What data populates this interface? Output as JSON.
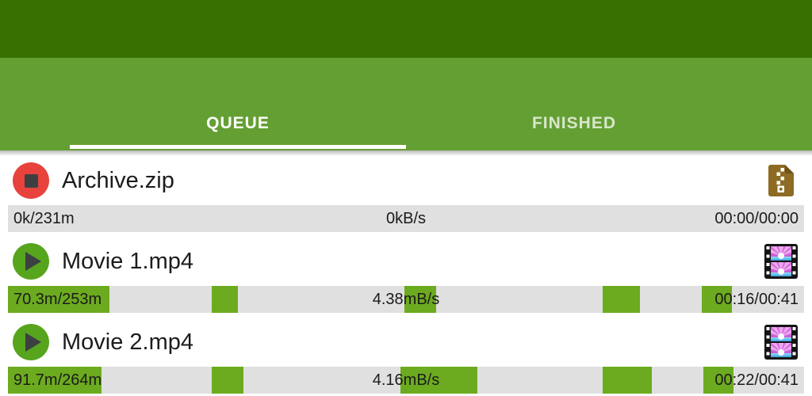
{
  "colors": {
    "status_bar": "#387002",
    "header": "#649f33",
    "progress_fill": "#6cab1f",
    "progress_track": "#e0e0e0",
    "stop_red": "#e8423d",
    "play_green": "#57a41d",
    "glyph_dark": "#3c4043",
    "zip_brown": "#8d6b23",
    "tab_indicator": "#ffffff"
  },
  "tabs": {
    "queue": "QUEUE",
    "finished": "FINISHED",
    "active": "QUEUE"
  },
  "downloads": [
    {
      "name": "Archive.zip",
      "action": "stop",
      "icon": "zip",
      "size": "0k/231m",
      "speed": "0kB/s",
      "time": "00:00/00:00",
      "segments": []
    },
    {
      "name": "Movie 1.mp4",
      "action": "play",
      "icon": "film",
      "size": "70.3m/253m",
      "speed": "4.38mB/s",
      "time": "00:16/00:41",
      "segments": [
        [
          0,
          12.7
        ],
        [
          25.6,
          28.9
        ],
        [
          49.8,
          53.8
        ],
        [
          74.7,
          79.4
        ],
        [
          87.2,
          90.9
        ]
      ]
    },
    {
      "name": "Movie 2.mp4",
      "action": "play",
      "icon": "film",
      "size": "91.7m/264m",
      "speed": "4.16mB/s",
      "time": "00:22/00:41",
      "segments": [
        [
          0,
          11.8
        ],
        [
          25.6,
          29.6
        ],
        [
          49.3,
          59.0
        ],
        [
          74.7,
          80.9
        ],
        [
          87.4,
          91.1
        ]
      ]
    }
  ]
}
